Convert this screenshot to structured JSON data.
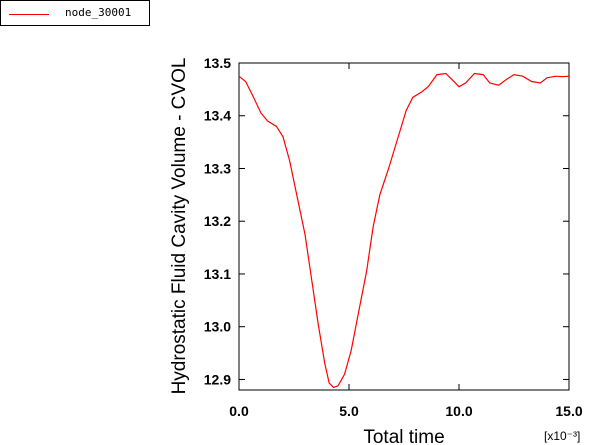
{
  "legend": {
    "entry_label": "node_30001",
    "entry_color": "#ff0000"
  },
  "chart_data": {
    "type": "line",
    "title": "",
    "xlabel": "Total time",
    "ylabel": "Hydrostatic Fluid Cavity Volume - CVOL",
    "x_multiplier": "[x10⁻³]",
    "xlim": [
      0.0,
      15.0
    ],
    "ylim": [
      12.88,
      13.5
    ],
    "x_ticks": [
      0.0,
      5.0,
      10.0,
      15.0
    ],
    "x_tick_labels": [
      "0.0",
      "5.0",
      "10.0",
      "15.0"
    ],
    "y_ticks": [
      12.9,
      13.0,
      13.1,
      13.2,
      13.3,
      13.4,
      13.5
    ],
    "y_tick_labels": [
      "12.9",
      "13.0",
      "13.1",
      "13.2",
      "13.3",
      "13.4",
      "13.5"
    ],
    "grid": false,
    "legend_position": "top-left",
    "series": [
      {
        "name": "node_30001",
        "color": "#ff0000",
        "x": [
          0.0,
          0.3,
          0.6,
          1.0,
          1.3,
          1.7,
          2.0,
          2.3,
          2.6,
          3.0,
          3.3,
          3.6,
          3.9,
          4.1,
          4.3,
          4.5,
          4.8,
          5.1,
          5.4,
          5.8,
          6.1,
          6.4,
          6.8,
          7.2,
          7.6,
          7.9,
          8.3,
          8.6,
          9.0,
          9.4,
          9.7,
          10.0,
          10.3,
          10.7,
          11.1,
          11.4,
          11.8,
          12.2,
          12.5,
          12.9,
          13.3,
          13.7,
          14.0,
          14.4,
          14.7,
          15.0
        ],
        "y": [
          13.475,
          13.465,
          13.44,
          13.405,
          13.39,
          13.38,
          13.36,
          13.315,
          13.255,
          13.175,
          13.09,
          13.005,
          12.93,
          12.893,
          12.885,
          12.888,
          12.91,
          12.955,
          13.02,
          13.105,
          13.19,
          13.25,
          13.3,
          13.355,
          13.41,
          13.435,
          13.445,
          13.455,
          13.478,
          13.48,
          13.468,
          13.455,
          13.462,
          13.48,
          13.478,
          13.462,
          13.458,
          13.47,
          13.478,
          13.475,
          13.465,
          13.462,
          13.472,
          13.475,
          13.474,
          13.475
        ]
      }
    ]
  }
}
